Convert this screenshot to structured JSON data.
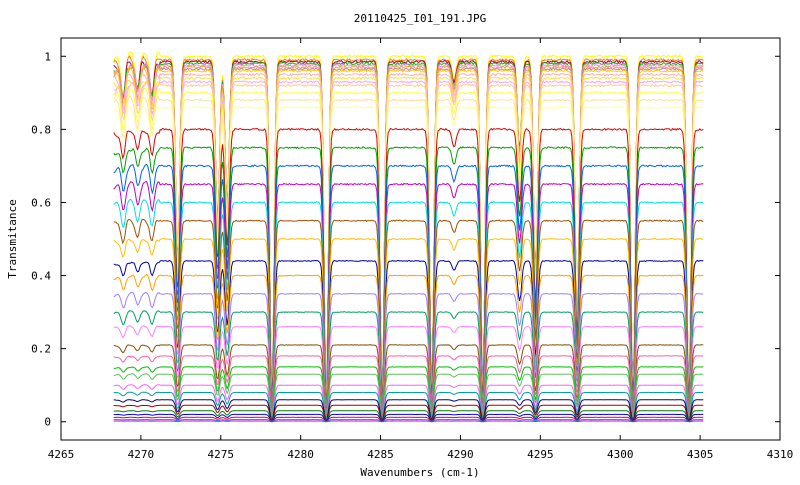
{
  "chart_data": {
    "type": "line",
    "title": "20110425_I01_191.JPG",
    "xlabel": "Wavenumbers (cm-1)",
    "ylabel": "Transmitance",
    "xlim": [
      4265,
      4310
    ],
    "ylim": [
      -0.05,
      1.05
    ],
    "x_ticks": [
      4265,
      4270,
      4275,
      4280,
      4285,
      4290,
      4295,
      4300,
      4305,
      4310
    ],
    "x_tick_labels": [
      "4265",
      "4270",
      "4275",
      "4280",
      "4285",
      "4290",
      "4295",
      "4300",
      "4305",
      "4310"
    ],
    "y_ticks": [
      0,
      0.2,
      0.4,
      0.6,
      0.8,
      1
    ],
    "y_tick_labels": [
      "0",
      "0.2",
      "0.4",
      "0.6",
      "0.8",
      "1"
    ],
    "grid": false,
    "legend": "none",
    "x_range_data": [
      4268.3,
      4305.2
    ],
    "absorption_lines": [
      {
        "x": 4268.9,
        "depth": 0.1
      },
      {
        "x": 4269.8,
        "depth": 0.08
      },
      {
        "x": 4270.7,
        "depth": 0.1
      },
      {
        "x": 4272.3,
        "depth": 0.55
      },
      {
        "x": 4274.8,
        "depth": 0.45
      },
      {
        "x": 4275.4,
        "depth": 0.4
      },
      {
        "x": 4278.2,
        "depth": 0.95
      },
      {
        "x": 4281.6,
        "depth": 0.95
      },
      {
        "x": 4285.1,
        "depth": 0.95
      },
      {
        "x": 4288.2,
        "depth": 0.92
      },
      {
        "x": 4289.6,
        "depth": 0.06
      },
      {
        "x": 4291.4,
        "depth": 0.92
      },
      {
        "x": 4293.7,
        "depth": 0.25
      },
      {
        "x": 4294.7,
        "depth": 0.6
      },
      {
        "x": 4297.3,
        "depth": 0.7
      },
      {
        "x": 4300.8,
        "depth": 0.95
      },
      {
        "x": 4304.3,
        "depth": 0.95
      }
    ],
    "series": [
      {
        "level": 1.0,
        "color": "#ffff00"
      },
      {
        "level": 0.99,
        "color": "#ff8000"
      },
      {
        "level": 0.985,
        "color": "#a00060"
      },
      {
        "level": 0.98,
        "color": "#00c000"
      },
      {
        "level": 0.975,
        "color": "#ff80ff"
      },
      {
        "level": 0.97,
        "color": "#ffa040"
      },
      {
        "level": 0.965,
        "color": "#c080c0"
      },
      {
        "level": 0.96,
        "color": "#ffcc00"
      },
      {
        "level": 0.95,
        "color": "#ffb0b0"
      },
      {
        "level": 0.94,
        "color": "#ffe040"
      },
      {
        "level": 0.93,
        "color": "#ffa0ff"
      },
      {
        "level": 0.92,
        "color": "#ffd080"
      },
      {
        "level": 0.9,
        "color": "#ffff40"
      },
      {
        "level": 0.88,
        "color": "#ffe0a0"
      },
      {
        "level": 0.86,
        "color": "#ffffa0"
      },
      {
        "level": 0.8,
        "color": "#e00000"
      },
      {
        "level": 0.75,
        "color": "#00a000"
      },
      {
        "level": 0.7,
        "color": "#0060ff"
      },
      {
        "level": 0.65,
        "color": "#c000c0"
      },
      {
        "level": 0.6,
        "color": "#00e0e0"
      },
      {
        "level": 0.55,
        "color": "#a05000"
      },
      {
        "level": 0.5,
        "color": "#ffc000"
      },
      {
        "level": 0.44,
        "color": "#0000a0"
      },
      {
        "level": 0.4,
        "color": "#ffa000"
      },
      {
        "level": 0.35,
        "color": "#a080ff"
      },
      {
        "level": 0.3,
        "color": "#00a060"
      },
      {
        "level": 0.26,
        "color": "#ff80ff"
      },
      {
        "level": 0.21,
        "color": "#805000"
      },
      {
        "level": 0.18,
        "color": "#ff60a0"
      },
      {
        "level": 0.15,
        "color": "#00c000"
      },
      {
        "level": 0.13,
        "color": "#60c060"
      },
      {
        "level": 0.1,
        "color": "#ff60ff"
      },
      {
        "level": 0.08,
        "color": "#00a0a0"
      },
      {
        "level": 0.06,
        "color": "#000080"
      },
      {
        "level": 0.045,
        "color": "#a00000"
      },
      {
        "level": 0.03,
        "color": "#008000"
      },
      {
        "level": 0.02,
        "color": "#0000ff"
      },
      {
        "level": 0.012,
        "color": "#ff0000"
      },
      {
        "level": 0.006,
        "color": "#00a0ff"
      },
      {
        "level": 0.002,
        "color": "#c000ff"
      }
    ]
  }
}
